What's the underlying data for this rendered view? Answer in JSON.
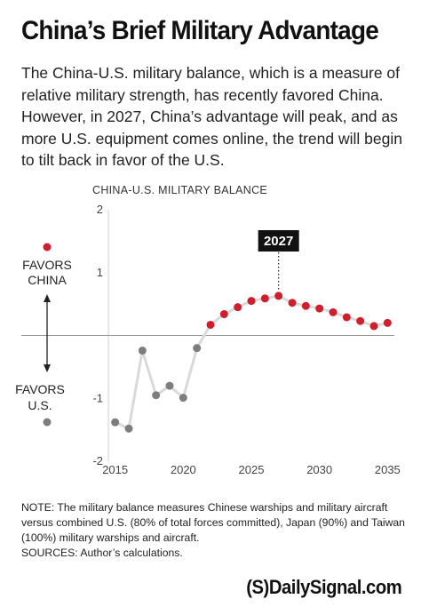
{
  "header": {
    "title": "China’s Brief Military Advantage",
    "subtitle": "The China-U.S. military balance, which is a measure of relative military strength, has recently favored China. However, in 2027, China’s advantage will peak, and as more U.S. equipment comes online, the trend will begin to tilt back in favor of the U.S."
  },
  "chart_data": {
    "type": "line",
    "title": "CHINA-U.S. MILITARY BALANCE",
    "xlabel": "",
    "ylabel": "",
    "xlim": [
      2014.5,
      2035.5
    ],
    "ylim": [
      -2,
      2
    ],
    "x_ticks": [
      2015,
      2020,
      2025,
      2030,
      2035
    ],
    "y_ticks": [
      2,
      1,
      -1,
      -2
    ],
    "zero_line": true,
    "grid": false,
    "legend": {
      "favors_china": "FAVORS CHINA",
      "favors_us": "FAVORS U.S.",
      "china_color": "#cf1e2e",
      "us_color": "#7d7d7d"
    },
    "annotation": {
      "x": 2027,
      "label": "2027"
    },
    "colors": {
      "line": "#d9d9d9",
      "us_point": "#7d7d7d",
      "china_point": "#cf1e2e",
      "zero_line": "#9a9a9a",
      "axis": "#cfcfcf"
    },
    "series": [
      {
        "x": [
          2015,
          2016,
          2017,
          2018,
          2019,
          2020,
          2021,
          2022,
          2023,
          2024,
          2025,
          2026,
          2027,
          2028,
          2029,
          2030,
          2031,
          2032,
          2033,
          2034,
          2035
        ],
        "values": [
          -1.38,
          -1.48,
          -0.24,
          -0.95,
          -0.8,
          -0.99,
          -0.2,
          0.17,
          0.34,
          0.45,
          0.55,
          0.59,
          0.63,
          0.52,
          0.47,
          0.43,
          0.37,
          0.29,
          0.23,
          0.15,
          0.2
        ]
      }
    ]
  },
  "footer": {
    "note": "NOTE: The military balance measures Chinese warships and military aircraft versus combined U.S. (80% of total forces committed), Japan (90%) and Taiwan (100%) military warships and aircraft.",
    "sources": "SOURCES: Author’s calculations.",
    "logo_mark": "(S)",
    "logo_text": "DailySignal.com"
  }
}
